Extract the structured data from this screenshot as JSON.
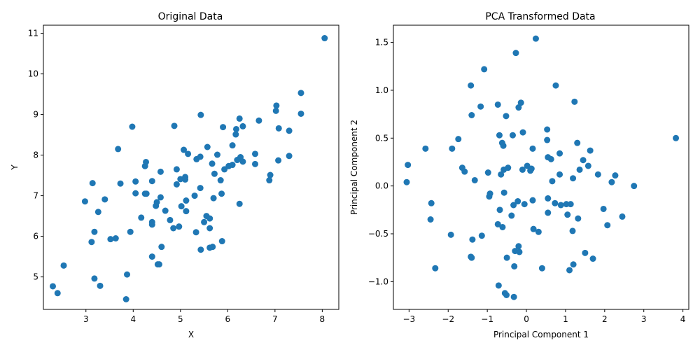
{
  "colors": {
    "point": "#1f77b4"
  },
  "chart_data": [
    {
      "type": "scatter",
      "title": "Original Data",
      "xlabel": "X",
      "ylabel": "Y",
      "xlim": [
        2.1,
        8.35
      ],
      "ylim": [
        4.2,
        11.2
      ],
      "xticks": [
        3,
        4,
        5,
        6,
        7,
        8
      ],
      "yticks": [
        5,
        6,
        7,
        8,
        9,
        10,
        11
      ],
      "grid": false,
      "series": [
        {
          "points": [
            [
              2.3,
              4.77
            ],
            [
              2.4,
              4.6
            ],
            [
              2.53,
              5.28
            ],
            [
              2.98,
              6.86
            ],
            [
              3.12,
              5.86
            ],
            [
              3.14,
              7.31
            ],
            [
              3.18,
              6.11
            ],
            [
              3.18,
              4.96
            ],
            [
              3.26,
              6.6
            ],
            [
              3.3,
              4.78
            ],
            [
              3.4,
              6.91
            ],
            [
              3.52,
              5.93
            ],
            [
              3.63,
              5.95
            ],
            [
              3.68,
              8.15
            ],
            [
              3.73,
              7.3
            ],
            [
              3.87,
              5.06
            ],
            [
              3.85,
              4.45
            ],
            [
              3.94,
              6.11
            ],
            [
              3.98,
              8.7
            ],
            [
              4.05,
              7.35
            ],
            [
              4.05,
              7.06
            ],
            [
              4.17,
              6.46
            ],
            [
              4.25,
              7.05
            ],
            [
              4.25,
              7.73
            ],
            [
              4.27,
              7.83
            ],
            [
              4.28,
              7.05
            ],
            [
              4.4,
              7.36
            ],
            [
              4.4,
              6.35
            ],
            [
              4.4,
              6.29
            ],
            [
              4.4,
              5.5
            ],
            [
              4.48,
              6.75
            ],
            [
              4.5,
              6.84
            ],
            [
              4.52,
              5.31
            ],
            [
              4.55,
              5.31
            ],
            [
              4.58,
              6.96
            ],
            [
              4.58,
              7.59
            ],
            [
              4.6,
              5.74
            ],
            [
              4.68,
              6.63
            ],
            [
              4.78,
              6.4
            ],
            [
              4.85,
              6.2
            ],
            [
              4.87,
              8.72
            ],
            [
              4.92,
              7.65
            ],
            [
              4.92,
              7.28
            ],
            [
              4.97,
              6.24
            ],
            [
              5.0,
              7.41
            ],
            [
              5.02,
              6.74
            ],
            [
              5.07,
              8.13
            ],
            [
              5.1,
              7.4
            ],
            [
              5.1,
              7.46
            ],
            [
              5.12,
              6.88
            ],
            [
              5.12,
              6.62
            ],
            [
              5.16,
              8.03
            ],
            [
              5.3,
              7.0
            ],
            [
              5.33,
              6.1
            ],
            [
              5.34,
              7.9
            ],
            [
              5.42,
              7.96
            ],
            [
              5.42,
              7.19
            ],
            [
              5.43,
              8.99
            ],
            [
              5.43,
              5.67
            ],
            [
              5.5,
              6.35
            ],
            [
              5.55,
              6.5
            ],
            [
              5.57,
              8.2
            ],
            [
              5.62,
              6.2
            ],
            [
              5.62,
              6.44
            ],
            [
              5.62,
              5.72
            ],
            [
              5.67,
              7.79
            ],
            [
              5.68,
              5.74
            ],
            [
              5.7,
              6.94
            ],
            [
              5.72,
              7.54
            ],
            [
              5.78,
              8.01
            ],
            [
              5.85,
              7.38
            ],
            [
              5.87,
              7.05
            ],
            [
              5.88,
              5.88
            ],
            [
              5.9,
              8.69
            ],
            [
              5.93,
              7.65
            ],
            [
              6.02,
              7.73
            ],
            [
              6.1,
              8.24
            ],
            [
              6.1,
              7.76
            ],
            [
              6.17,
              8.51
            ],
            [
              6.18,
              8.64
            ],
            [
              6.2,
              7.88
            ],
            [
              6.25,
              8.9
            ],
            [
              6.25,
              6.8
            ],
            [
              6.27,
              7.95
            ],
            [
              6.32,
              8.71
            ],
            [
              6.32,
              7.84
            ],
            [
              6.58,
              8.03
            ],
            [
              6.58,
              7.78
            ],
            [
              6.66,
              8.85
            ],
            [
              6.88,
              7.38
            ],
            [
              6.9,
              7.51
            ],
            [
              7.02,
              9.09
            ],
            [
              7.03,
              9.22
            ],
            [
              7.07,
              7.87
            ],
            [
              7.08,
              8.66
            ],
            [
              7.3,
              8.6
            ],
            [
              7.3,
              7.98
            ],
            [
              7.55,
              9.53
            ],
            [
              7.55,
              9.02
            ],
            [
              8.05,
              10.88
            ]
          ]
        }
      ]
    },
    {
      "type": "scatter",
      "title": "PCA Transformed Data",
      "xlabel": "Principal Component 1",
      "ylabel": "Principal Component 2",
      "xlim": [
        -3.4,
        4.15
      ],
      "ylim": [
        -1.29,
        1.68
      ],
      "xticks": [
        -3,
        -2,
        -1,
        0,
        1,
        2,
        3,
        4
      ],
      "yticks": [
        -1.0,
        -0.5,
        0.0,
        0.5,
        1.0,
        1.5
      ],
      "ytick_labels": [
        "−1.0",
        "−0.5",
        "0.0",
        "0.5",
        "1.0",
        "1.5"
      ],
      "xtick_labels": [
        "−3",
        "−2",
        "−1",
        "0",
        "1",
        "2",
        "3",
        "4"
      ],
      "grid": false,
      "series": [
        {
          "points": [
            [
              -3.06,
              0.04
            ],
            [
              -3.03,
              0.22
            ],
            [
              -2.58,
              0.39
            ],
            [
              -2.43,
              -0.18
            ],
            [
              -2.45,
              -0.35
            ],
            [
              -2.33,
              -0.86
            ],
            [
              -1.93,
              -0.51
            ],
            [
              -1.9,
              0.39
            ],
            [
              -1.74,
              0.49
            ],
            [
              -1.64,
              0.19
            ],
            [
              -1.58,
              0.15
            ],
            [
              -1.42,
              1.05
            ],
            [
              -1.4,
              0.74
            ],
            [
              -1.38,
              -0.56
            ],
            [
              -1.42,
              -0.74
            ],
            [
              -1.4,
              -0.75
            ],
            [
              -1.32,
              0.06
            ],
            [
              -1.17,
              0.83
            ],
            [
              -1.14,
              -0.52
            ],
            [
              -1.08,
              1.22
            ],
            [
              -0.98,
              0.14
            ],
            [
              -0.95,
              -0.11
            ],
            [
              -0.93,
              -0.08
            ],
            [
              -0.73,
              0.85
            ],
            [
              -0.73,
              -0.4
            ],
            [
              -0.71,
              -1.04
            ],
            [
              -0.69,
              0.53
            ],
            [
              -0.68,
              -0.25
            ],
            [
              -0.65,
              0.12
            ],
            [
              -0.62,
              0.45
            ],
            [
              -0.61,
              -0.43
            ],
            [
              -0.59,
              0.42
            ],
            [
              -0.58,
              0.17
            ],
            [
              -0.57,
              -0.07
            ],
            [
              -0.55,
              -1.12
            ],
            [
              -0.52,
              0.73
            ],
            [
              -0.51,
              -1.14
            ],
            [
              -0.5,
              -0.75
            ],
            [
              -0.47,
              0.19
            ],
            [
              -0.38,
              -0.31
            ],
            [
              -0.35,
              0.53
            ],
            [
              -0.33,
              -0.2
            ],
            [
              -0.31,
              -0.84
            ],
            [
              -0.32,
              -1.16
            ],
            [
              -0.29,
              -0.68
            ],
            [
              -0.27,
              1.39
            ],
            [
              -0.22,
              -0.16
            ],
            [
              -0.2,
              0.82
            ],
            [
              -0.2,
              -0.63
            ],
            [
              -0.18,
              -0.69
            ],
            [
              -0.14,
              0.87
            ],
            [
              -0.1,
              0.17
            ],
            [
              -0.09,
              0.56
            ],
            [
              -0.05,
              -0.19
            ],
            [
              0.02,
              0.21
            ],
            [
              0.1,
              0.16
            ],
            [
              0.13,
              0.18
            ],
            [
              0.16,
              -0.15
            ],
            [
              0.16,
              0.39
            ],
            [
              0.18,
              -0.45
            ],
            [
              0.24,
              1.54
            ],
            [
              0.31,
              -0.48
            ],
            [
              0.4,
              -0.86
            ],
            [
              0.53,
              0.48
            ],
            [
              0.53,
              0.59
            ],
            [
              0.55,
              -0.13
            ],
            [
              0.55,
              -0.28
            ],
            [
              0.55,
              0.3
            ],
            [
              0.63,
              0.28
            ],
            [
              0.66,
              0.05
            ],
            [
              0.73,
              -0.18
            ],
            [
              0.75,
              1.05
            ],
            [
              0.85,
              0.34
            ],
            [
              0.85,
              0.12
            ],
            [
              0.88,
              -0.2
            ],
            [
              1.02,
              -0.19
            ],
            [
              1.05,
              -0.3
            ],
            [
              1.1,
              -0.88
            ],
            [
              1.13,
              -0.19
            ],
            [
              1.18,
              -0.47
            ],
            [
              1.19,
              0.08
            ],
            [
              1.2,
              -0.82
            ],
            [
              1.23,
              0.88
            ],
            [
              1.3,
              0.45
            ],
            [
              1.32,
              -0.34
            ],
            [
              1.36,
              0.17
            ],
            [
              1.45,
              0.27
            ],
            [
              1.5,
              -0.7
            ],
            [
              1.58,
              0.21
            ],
            [
              1.63,
              0.37
            ],
            [
              1.7,
              -0.76
            ],
            [
              1.83,
              0.12
            ],
            [
              1.97,
              -0.24
            ],
            [
              2.07,
              -0.41
            ],
            [
              2.18,
              0.04
            ],
            [
              2.27,
              0.11
            ],
            [
              2.45,
              -0.32
            ],
            [
              2.75,
              0.0
            ],
            [
              3.82,
              0.5
            ]
          ]
        }
      ]
    }
  ]
}
